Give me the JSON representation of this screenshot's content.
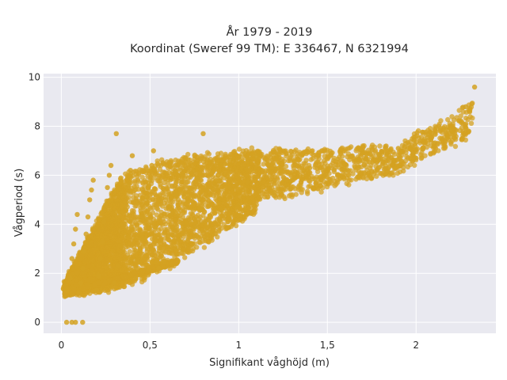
{
  "chart_data": {
    "type": "scatter",
    "title_lines": [
      "År 1979 - 2019",
      "Koordinat (Sweref 99 TM): E 336467, N 6321994"
    ],
    "xlabel": "Signifikant våghöjd (m)",
    "ylabel": "Vågperiod (s)",
    "xlim": [
      -0.1,
      2.45
    ],
    "ylim": [
      -0.45,
      10.15
    ],
    "x_ticks": [
      0,
      0.5,
      1,
      1.5,
      2
    ],
    "x_tick_labels": [
      "0",
      "0,5",
      "1",
      "1,5",
      "2"
    ],
    "y_ticks": [
      0,
      2,
      4,
      6,
      8,
      10
    ],
    "y_tick_labels": [
      "0",
      "2",
      "4",
      "6",
      "8",
      "10"
    ],
    "grid": true,
    "marker_color": "#d4a222",
    "background_color": "#e9e9f0",
    "points": [
      [
        0.03,
        0.0
      ],
      [
        0.06,
        0.0
      ],
      [
        0.08,
        0.0
      ],
      [
        0.12,
        0.0
      ],
      [
        0.03,
        1.3
      ],
      [
        0.05,
        1.8
      ],
      [
        0.06,
        2.6
      ],
      [
        0.07,
        3.2
      ],
      [
        0.08,
        3.8
      ],
      [
        0.09,
        4.4
      ],
      [
        0.1,
        1.2
      ],
      [
        0.11,
        1.6
      ],
      [
        0.12,
        2.2
      ],
      [
        0.13,
        2.9
      ],
      [
        0.14,
        3.6
      ],
      [
        0.15,
        4.3
      ],
      [
        0.16,
        5.0
      ],
      [
        0.17,
        5.4
      ],
      [
        0.18,
        5.8
      ],
      [
        0.2,
        1.3
      ],
      [
        0.21,
        1.9
      ],
      [
        0.22,
        2.6
      ],
      [
        0.23,
        3.3
      ],
      [
        0.24,
        4.1
      ],
      [
        0.25,
        4.8
      ],
      [
        0.26,
        5.5
      ],
      [
        0.27,
        6.0
      ],
      [
        0.28,
        6.4
      ],
      [
        0.3,
        1.6
      ],
      [
        0.31,
        7.7
      ],
      [
        0.32,
        2.3
      ],
      [
        0.34,
        3.1
      ],
      [
        0.35,
        4.0
      ],
      [
        0.36,
        4.9
      ],
      [
        0.38,
        5.6
      ],
      [
        0.39,
        6.2
      ],
      [
        0.4,
        6.8
      ],
      [
        0.42,
        1.8
      ],
      [
        0.43,
        2.5
      ],
      [
        0.45,
        3.4
      ],
      [
        0.46,
        4.3
      ],
      [
        0.48,
        5.1
      ],
      [
        0.5,
        5.8
      ],
      [
        0.51,
        6.4
      ],
      [
        0.52,
        7.0
      ],
      [
        0.55,
        2.2
      ],
      [
        0.58,
        2.5
      ],
      [
        0.6,
        3.5
      ],
      [
        0.62,
        4.4
      ],
      [
        0.65,
        5.2
      ],
      [
        0.68,
        6.0
      ],
      [
        0.7,
        6.7
      ],
      [
        0.75,
        3.9
      ],
      [
        0.78,
        4.6
      ],
      [
        0.8,
        7.7
      ],
      [
        0.82,
        5.4
      ],
      [
        0.85,
        6.1
      ],
      [
        0.9,
        4.6
      ],
      [
        0.95,
        5.5
      ],
      [
        1.0,
        4.8
      ],
      [
        1.05,
        5.7
      ],
      [
        1.1,
        6.8
      ],
      [
        1.2,
        5.3
      ],
      [
        1.3,
        5.8
      ],
      [
        1.4,
        6.3
      ],
      [
        1.5,
        5.7
      ],
      [
        1.6,
        6.2
      ],
      [
        1.7,
        6.6
      ],
      [
        1.8,
        6.7
      ],
      [
        1.9,
        7.1
      ],
      [
        2.0,
        6.7
      ],
      [
        2.1,
        7.3
      ],
      [
        2.2,
        7.8
      ],
      [
        2.28,
        8.8
      ],
      [
        2.33,
        9.6
      ]
    ]
  }
}
